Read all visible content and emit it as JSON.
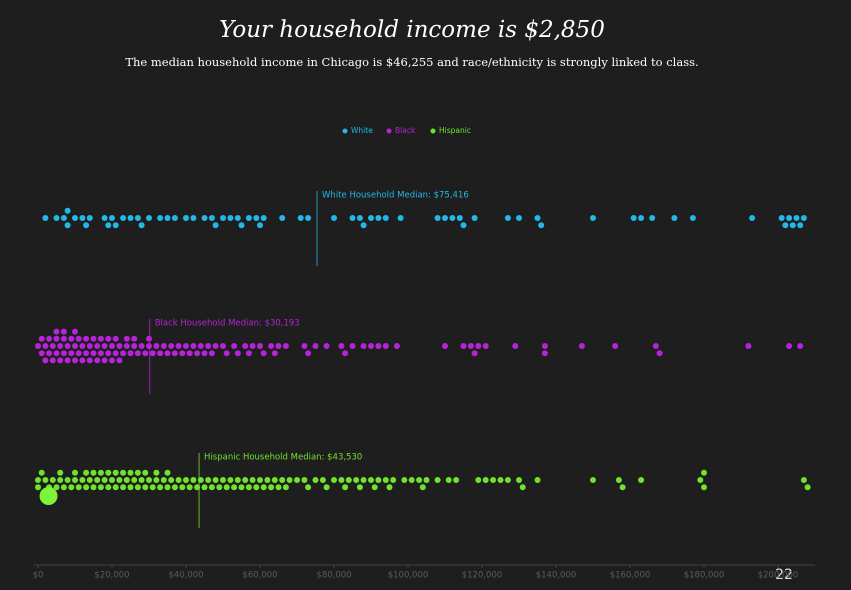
{
  "chart_data": {
    "type": "beeswarm",
    "title": "Your household income is $2,850",
    "subtitle": "The median household income in Chicago is $46,255 and race/ethnicity is strongly linked to class.",
    "household_income": 2850,
    "household_color": "#7cf53a",
    "xlim": [
      0,
      210000
    ],
    "xticks": [
      {
        "value": 0,
        "label": "$0"
      },
      {
        "value": 20000,
        "label": "$20,000"
      },
      {
        "value": 40000,
        "label": "$40,000"
      },
      {
        "value": 60000,
        "label": "$60,000"
      },
      {
        "value": 80000,
        "label": "$80,000"
      },
      {
        "value": 100000,
        "label": "$100,000"
      },
      {
        "value": 120000,
        "label": "$120,000"
      },
      {
        "value": 140000,
        "label": "$140,000"
      },
      {
        "value": 160000,
        "label": "$160,000"
      },
      {
        "value": 180000,
        "label": "$180,000"
      },
      {
        "value": 200000,
        "label": "$200,000"
      }
    ],
    "series": [
      {
        "name": "White",
        "color": "#22b8ea",
        "median": 75416,
        "median_label": "White Household Median: $75,416",
        "values": [
          2000,
          5000,
          7000,
          8000,
          8000,
          10000,
          12000,
          13000,
          14000,
          18000,
          19000,
          20000,
          21000,
          23000,
          25000,
          27000,
          28000,
          30000,
          33000,
          35000,
          37000,
          40000,
          42000,
          45000,
          47000,
          48000,
          50000,
          52000,
          54000,
          55000,
          57000,
          59000,
          60000,
          61000,
          66000,
          71000,
          73000,
          80000,
          85000,
          87000,
          88000,
          90000,
          92000,
          94000,
          98000,
          108000,
          110000,
          112000,
          114000,
          115000,
          118000,
          127000,
          130000,
          135000,
          136000,
          150000,
          161000,
          163000,
          166000,
          172000,
          177000,
          193000,
          201000,
          202000,
          203000,
          204000,
          205000,
          206000,
          207000
        ]
      },
      {
        "name": "Black",
        "color": "#b623d8",
        "median": 30193,
        "median_label": "Black Household Median: $30,193",
        "values": [
          0,
          1000,
          1000,
          2000,
          2000,
          3000,
          3000,
          4000,
          4000,
          5000,
          5000,
          5000,
          6000,
          6000,
          7000,
          7000,
          7000,
          8000,
          8000,
          9000,
          9000,
          10000,
          10000,
          10000,
          11000,
          11000,
          12000,
          12000,
          13000,
          13000,
          14000,
          14000,
          15000,
          15000,
          16000,
          16000,
          17000,
          17000,
          18000,
          18000,
          19000,
          19000,
          20000,
          20000,
          21000,
          21000,
          22000,
          22000,
          23000,
          24000,
          24000,
          25000,
          26000,
          26000,
          27000,
          28000,
          29000,
          30000,
          30000,
          31000,
          32000,
          33000,
          34000,
          35000,
          36000,
          37000,
          38000,
          39000,
          40000,
          41000,
          42000,
          43000,
          44000,
          45000,
          46000,
          47000,
          48000,
          50000,
          51000,
          53000,
          54000,
          56000,
          57000,
          58000,
          60000,
          61000,
          63000,
          64000,
          65000,
          67000,
          72000,
          73000,
          75000,
          78000,
          82000,
          83000,
          85000,
          88000,
          90000,
          92000,
          94000,
          97000,
          110000,
          115000,
          117000,
          118000,
          119000,
          121000,
          129000,
          137000,
          137000,
          147000,
          156000,
          167000,
          168000,
          192000,
          203000,
          206000
        ]
      },
      {
        "name": "Hispanic",
        "color": "#72e32c",
        "median": 43530,
        "median_label": "Hispanic Household Median: $43,530",
        "values": [
          0,
          0,
          1000,
          2000,
          3000,
          4000,
          5000,
          6000,
          6000,
          7000,
          8000,
          9000,
          10000,
          10000,
          11000,
          12000,
          13000,
          13000,
          14000,
          15000,
          15000,
          16000,
          17000,
          17000,
          18000,
          19000,
          19000,
          20000,
          21000,
          21000,
          22000,
          23000,
          23000,
          24000,
          25000,
          25000,
          26000,
          27000,
          27000,
          28000,
          29000,
          29000,
          30000,
          31000,
          32000,
          32000,
          33000,
          34000,
          35000,
          35000,
          36000,
          37000,
          38000,
          39000,
          40000,
          41000,
          42000,
          43000,
          44000,
          45000,
          46000,
          47000,
          48000,
          49000,
          50000,
          51000,
          52000,
          53000,
          54000,
          55000,
          56000,
          57000,
          58000,
          59000,
          60000,
          61000,
          62000,
          63000,
          64000,
          65000,
          66000,
          67000,
          68000,
          70000,
          72000,
          73000,
          75000,
          77000,
          78000,
          80000,
          82000,
          83000,
          84000,
          86000,
          87000,
          88000,
          90000,
          91000,
          92000,
          94000,
          95000,
          96000,
          99000,
          101000,
          103000,
          104000,
          105000,
          108000,
          111000,
          113000,
          119000,
          121000,
          123000,
          125000,
          127000,
          130000,
          131000,
          135000,
          150000,
          157000,
          158000,
          163000,
          179000,
          180000,
          180000,
          207000,
          208000
        ]
      }
    ]
  },
  "page_number": "22"
}
